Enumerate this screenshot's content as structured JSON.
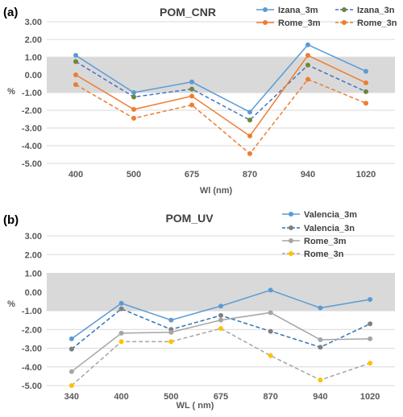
{
  "chart_data": [
    {
      "type": "line",
      "panel_label": "(a)",
      "title": "POM_CNR",
      "xlabel": "Wl (nm)",
      "ylabel": "%",
      "categories": [
        "400",
        "500",
        "675",
        "870",
        "940",
        "1020"
      ],
      "ylim": [
        -5,
        3
      ],
      "ytick_labels": [
        "3.00",
        "2.00",
        "1.00",
        "0.00",
        "-1.00",
        "-2.00",
        "-3.00",
        "-4.00",
        "-5.00"
      ],
      "band": [
        -1,
        1
      ],
      "band_color": "#d9d9d9",
      "legend_position": "top-right",
      "series": [
        {
          "name": "Izana_3m",
          "values": [
            1.1,
            -1.0,
            -0.4,
            -2.1,
            1.7,
            0.2
          ],
          "color": "#5b9bd5",
          "dash": "solid"
        },
        {
          "name": "Izana_3n",
          "values": [
            0.75,
            -1.25,
            -0.8,
            -2.55,
            0.55,
            -0.95
          ],
          "color": "#4472c4",
          "marker_color": "#70843a",
          "dash": "dashed"
        },
        {
          "name": "Rome_3m",
          "values": [
            0.0,
            -1.95,
            -1.2,
            -3.45,
            1.1,
            -0.45
          ],
          "color": "#ed7d31",
          "dash": "solid"
        },
        {
          "name": "Rome_3n",
          "values": [
            -0.55,
            -2.45,
            -1.7,
            -4.45,
            -0.25,
            -1.6
          ],
          "color": "#ed7d31",
          "dash": "dashed"
        }
      ]
    },
    {
      "type": "line",
      "panel_label": "(b)",
      "title": "POM_UV",
      "xlabel": "WL ( nm)",
      "ylabel": "%",
      "categories": [
        "340",
        "400",
        "500",
        "675",
        "870",
        "940",
        "1020"
      ],
      "ylim": [
        -5,
        3
      ],
      "ytick_labels": [
        "3.00",
        "2.00",
        "1.00",
        "0.00",
        "-1.00",
        "-2.00",
        "-3.00",
        "-4.00",
        "-5.00"
      ],
      "band": [
        -1,
        1
      ],
      "band_color": "#d9d9d9",
      "legend_position": "top-right",
      "series": [
        {
          "name": "Valencia_3m",
          "values": [
            -2.5,
            -0.6,
            -1.5,
            -0.75,
            0.1,
            -0.85,
            -0.4
          ],
          "color": "#5b9bd5",
          "dash": "solid"
        },
        {
          "name": "Valencia_3n",
          "values": [
            -3.05,
            -0.9,
            -2.0,
            -1.25,
            -2.1,
            -2.95,
            -1.7
          ],
          "color": "#2e75b6",
          "marker_color": "#7f7f7f",
          "dash": "dashed"
        },
        {
          "name": "Rome_3m",
          "values": [
            -4.25,
            -2.2,
            -2.15,
            -1.5,
            -1.1,
            -2.55,
            -2.5
          ],
          "color": "#a5a5a5",
          "dash": "solid"
        },
        {
          "name": "Rome_3n",
          "values": [
            -5.0,
            -2.65,
            -2.65,
            -1.95,
            -3.4,
            -4.7,
            -3.8
          ],
          "color": "#a5a5a5",
          "marker_color": "#ffc000",
          "dash": "dashed"
        }
      ]
    }
  ]
}
